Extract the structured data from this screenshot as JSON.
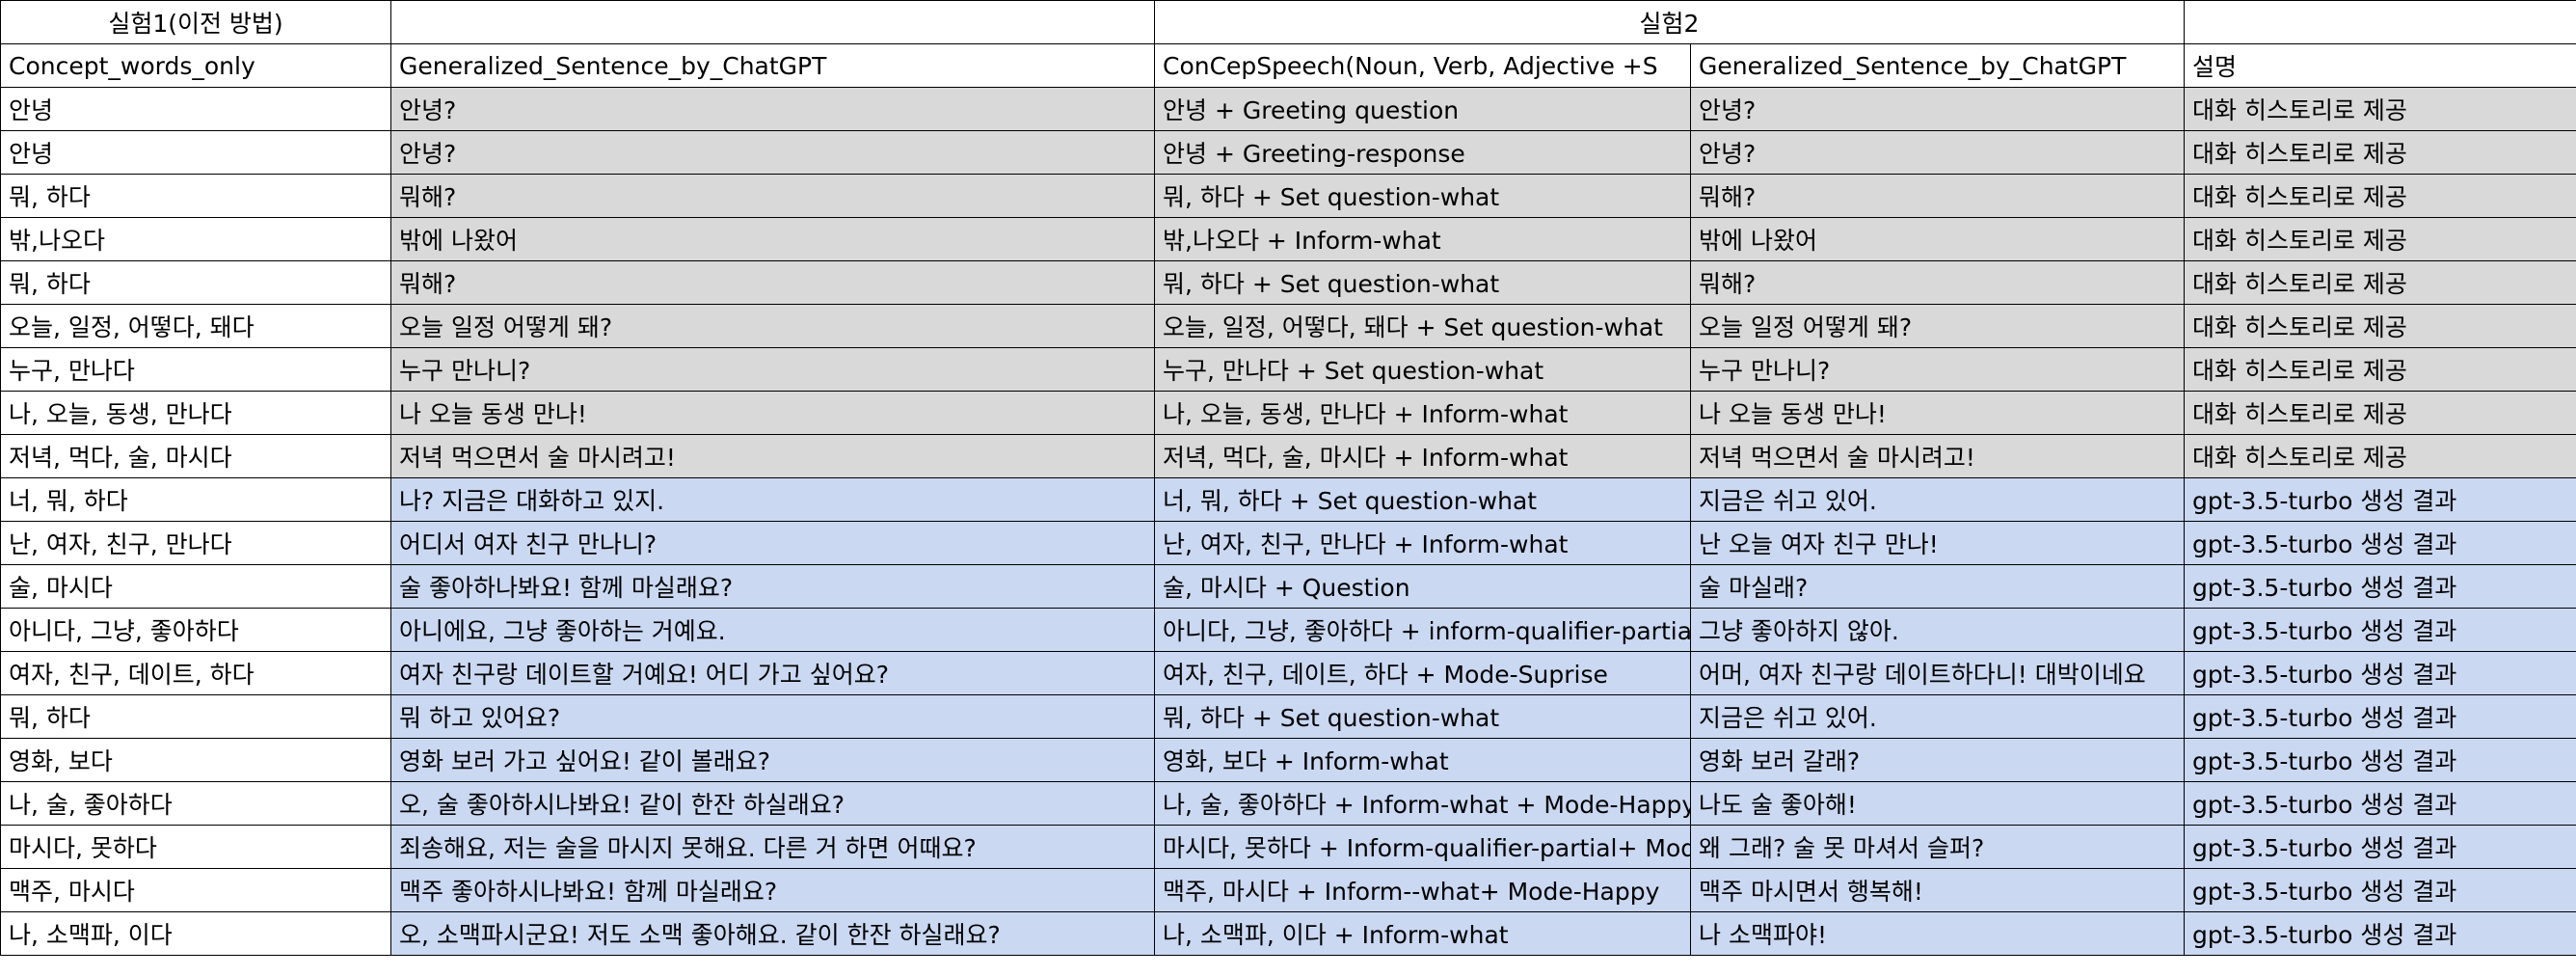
{
  "colors": {
    "history_fill": "#d9d9d9",
    "generated_fill": "#cad8f2",
    "grid": "#000000"
  },
  "group_headers": {
    "exp1": "실험1(이전 방법)",
    "exp2": "실험2"
  },
  "column_headers": [
    "Concept_words_only",
    "Generalized_Sentence_by_ChatGPT",
    "ConCepSpeech(Noun, Verb, Adjective +S",
    "Generalized_Sentence_by_ChatGPT",
    "설명"
  ],
  "rows": [
    {
      "concept": "안녕",
      "gen1": "안녕?",
      "speech": "안녕 + Greeting question",
      "gen2": "안녕?",
      "desc": "대화 히스토리로 제공"
    },
    {
      "concept": "안녕",
      "gen1": "안녕?",
      "speech": "안녕 + Greeting-response",
      "gen2": "안녕?",
      "desc": "대화 히스토리로 제공"
    },
    {
      "concept": "뭐, 하다",
      "gen1": "뭐해?",
      "speech": "뭐, 하다 + Set question-what",
      "gen2": "뭐해?",
      "desc": "대화 히스토리로 제공"
    },
    {
      "concept": "밖,나오다",
      "gen1": "밖에 나왔어",
      "speech": "밖,나오다 + Inform-what",
      "gen2": "밖에 나왔어",
      "desc": "대화 히스토리로 제공"
    },
    {
      "concept": "뭐, 하다",
      "gen1": "뭐해?",
      "speech": "뭐, 하다 + Set question-what",
      "gen2": "뭐해?",
      "desc": "대화 히스토리로 제공"
    },
    {
      "concept": "오늘, 일정, 어떻다, 돼다",
      "gen1": "오늘 일정 어떻게 돼?",
      "speech": "오늘, 일정, 어떻다, 돼다 + Set question-what",
      "gen2": "오늘 일정 어떻게 돼?",
      "desc": "대화 히스토리로 제공"
    },
    {
      "concept": "누구, 만나다",
      "gen1": "누구 만나니?",
      "speech": "누구, 만나다 + Set question-what",
      "gen2": "누구 만나니?",
      "desc": "대화 히스토리로 제공"
    },
    {
      "concept": "나, 오늘, 동생, 만나다",
      "gen1": "나 오늘 동생 만나!",
      "speech": "나, 오늘, 동생, 만나다 + Inform-what",
      "gen2": "나 오늘 동생 만나!",
      "desc": "대화 히스토리로 제공"
    },
    {
      "concept": "저녁, 먹다, 술, 마시다",
      "gen1": "저녁 먹으면서 술 마시려고!",
      "speech": "저녁, 먹다, 술, 마시다 + Inform-what",
      "gen2": "저녁 먹으면서 술 마시려고!",
      "desc": "대화 히스토리로 제공"
    },
    {
      "concept": "너, 뭐, 하다",
      "gen1": "나? 지금은 대화하고 있지.",
      "speech": "너, 뭐, 하다 + Set question-what",
      "gen2": "지금은 쉬고 있어.",
      "desc": "gpt-3.5-turbo 생성 결과"
    },
    {
      "concept": "난, 여자, 친구, 만나다",
      "gen1": "어디서 여자 친구 만나니?",
      "speech": "난, 여자, 친구, 만나다 + Inform-what",
      "gen2": "난 오늘 여자 친구 만나!",
      "desc": "gpt-3.5-turbo 생성 결과"
    },
    {
      "concept": "술, 마시다",
      "gen1": "술 좋아하나봐요! 함께 마실래요?",
      "speech": "술, 마시다 + Question",
      "gen2": "술 마실래?",
      "desc": "gpt-3.5-turbo 생성 결과"
    },
    {
      "concept": "아니다, 그냥, 좋아하다",
      "gen1": "아니에요, 그냥 좋아하는 거예요.",
      "speech": "아니다, 그냥, 좋아하다 + inform-qualifier-partial",
      "gen2": "그냥 좋아하지 않아.",
      "desc": "gpt-3.5-turbo 생성 결과"
    },
    {
      "concept": "여자, 친구, 데이트, 하다",
      "gen1": "여자 친구랑 데이트할 거예요! 어디 가고 싶어요?",
      "speech": "여자, 친구, 데이트, 하다 + Mode-Suprise",
      "gen2": "어머, 여자 친구랑 데이트하다니! 대박이네요",
      "desc": "gpt-3.5-turbo 생성 결과"
    },
    {
      "concept": "뭐, 하다",
      "gen1": "뭐 하고 있어요?",
      "speech": "뭐, 하다 + Set question-what",
      "gen2": "지금은 쉬고 있어.",
      "desc": "gpt-3.5-turbo 생성 결과"
    },
    {
      "concept": "영화, 보다",
      "gen1": "영화 보러 가고 싶어요! 같이 볼래요?",
      "speech": "영화, 보다 + Inform-what",
      "gen2": "영화 보러 갈래?",
      "desc": "gpt-3.5-turbo 생성 결과"
    },
    {
      "concept": "나, 술, 좋아하다",
      "gen1": "오, 술 좋아하시나봐요! 같이 한잔 하실래요?",
      "speech": "나, 술, 좋아하다 + Inform-what + Mode-Happy",
      "gen2": "나도 술 좋아해!",
      "desc": "gpt-3.5-turbo 생성 결과"
    },
    {
      "concept": "마시다, 못하다",
      "gen1": "죄송해요, 저는 술을 마시지 못해요. 다른 거 하면 어때요?",
      "speech": "마시다, 못하다 + Inform-qualifier-partial+ Mode",
      "gen2": "왜 그래? 술 못 마셔서 슬퍼?",
      "desc": "gpt-3.5-turbo 생성 결과"
    },
    {
      "concept": "맥주, 마시다",
      "gen1": "맥주 좋아하시나봐요! 함께 마실래요?",
      "speech": "맥주, 마시다 + Inform--what+ Mode-Happy",
      "gen2": "맥주 마시면서 행복해!",
      "desc": "gpt-3.5-turbo 생성 결과"
    },
    {
      "concept": "나, 소맥파, 이다",
      "gen1": "오, 소맥파시군요! 저도 소맥 좋아해요. 같이 한잔 하실래요?",
      "speech": "나, 소맥파, 이다 + Inform-what",
      "gen2": "나 소맥파야!",
      "desc": "gpt-3.5-turbo 생성 결과"
    }
  ]
}
